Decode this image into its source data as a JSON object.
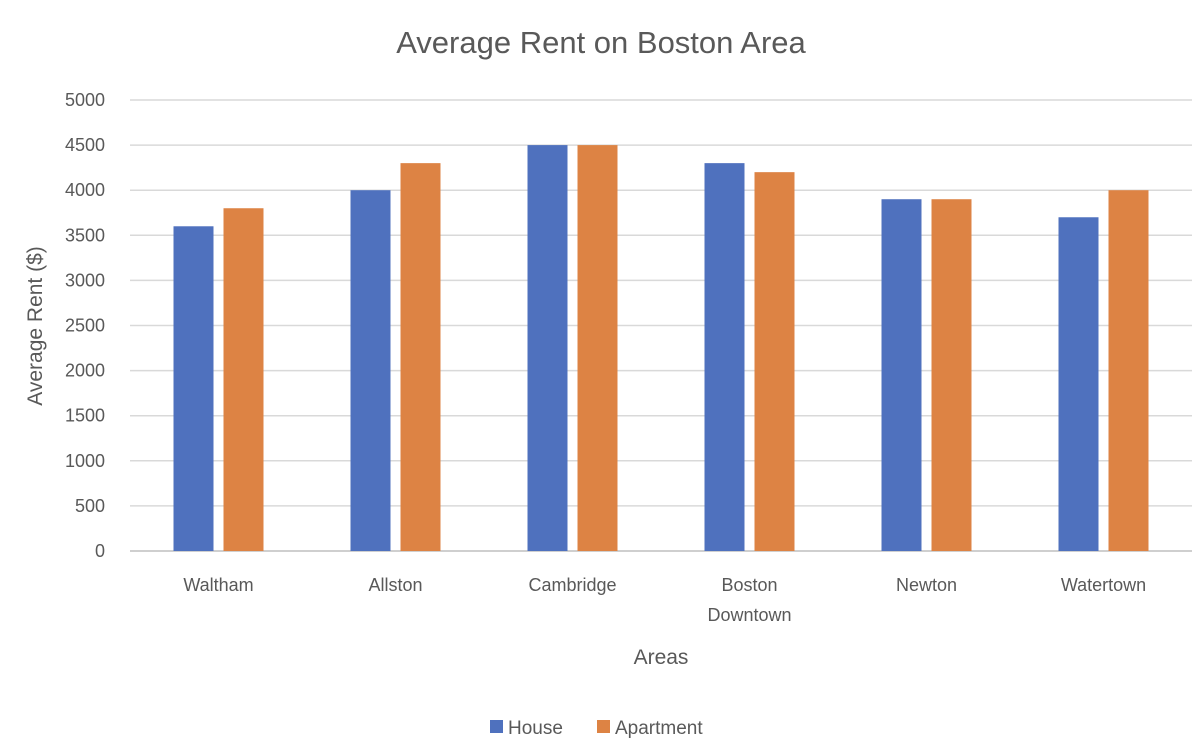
{
  "chart_data": {
    "type": "bar",
    "title": "Average Rent on Boston Area",
    "xlabel": "Areas",
    "ylabel": "Average Rent ($)",
    "categories": [
      [
        "Waltham"
      ],
      [
        "Allston"
      ],
      [
        "Cambridge"
      ],
      [
        "Boston",
        "Downtown"
      ],
      [
        "Newton"
      ],
      [
        "Watertown"
      ]
    ],
    "series": [
      {
        "name": "House",
        "color": "#4f71be",
        "values": [
          3600,
          4000,
          4500,
          4300,
          3900,
          3700
        ]
      },
      {
        "name": "Apartment",
        "color": "#dd8344",
        "values": [
          3800,
          4300,
          4500,
          4200,
          3900,
          4000
        ]
      }
    ],
    "ylim": [
      0,
      5000
    ],
    "yticks": [
      0,
      500,
      1000,
      1500,
      2000,
      2500,
      3000,
      3500,
      4000,
      4500,
      5000
    ],
    "grid": true,
    "legend_position": "bottom"
  }
}
